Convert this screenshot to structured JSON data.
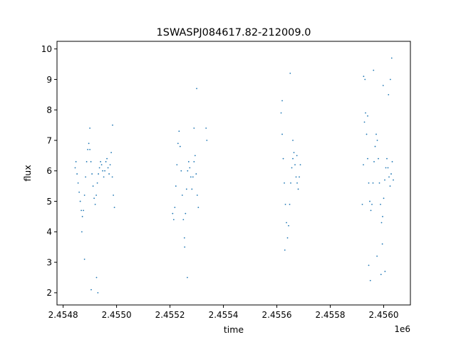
{
  "chart_data": {
    "type": "scatter",
    "title": "1SWASPJ084617.82-212009.0",
    "xlabel": "time",
    "ylabel": "flux",
    "x_offset_label": "1e6",
    "x_scale": 1000000,
    "xlim": [
      2454777,
      2456100
    ],
    "ylim": [
      1.6,
      10.25
    ],
    "x_ticks": [
      2454800,
      2455000,
      2455200,
      2455400,
      2455600,
      2455800,
      2456000
    ],
    "x_tick_labels": [
      "2.4548",
      "2.4550",
      "2.4552",
      "2.4554",
      "2.4556",
      "2.4558",
      "2.4560"
    ],
    "y_ticks": [
      2,
      3,
      4,
      5,
      6,
      7,
      8,
      9,
      10
    ],
    "y_tick_labels": [
      "2",
      "3",
      "4",
      "5",
      "6",
      "7",
      "8",
      "9",
      "10"
    ],
    "grid": false,
    "legend": "none",
    "marker_color": "#1f77b4",
    "series": [
      {
        "points": [
          [
            2454845,
            6.1
          ],
          [
            2454848,
            6.3
          ],
          [
            2454852,
            5.9
          ],
          [
            2454856,
            5.6
          ],
          [
            2454860,
            5.3
          ],
          [
            2454864,
            5.0
          ],
          [
            2454868,
            4.7
          ],
          [
            2454872,
            4.5
          ],
          [
            2454876,
            4.7
          ],
          [
            2454880,
            5.2
          ],
          [
            2454884,
            5.8
          ],
          [
            2454888,
            6.3
          ],
          [
            2454892,
            6.7
          ],
          [
            2454896,
            6.9
          ],
          [
            2454900,
            6.7
          ],
          [
            2454904,
            6.3
          ],
          [
            2454908,
            5.9
          ],
          [
            2454912,
            5.5
          ],
          [
            2454916,
            5.1
          ],
          [
            2454920,
            4.9
          ],
          [
            2454924,
            5.2
          ],
          [
            2454928,
            5.6
          ],
          [
            2454932,
            5.9
          ],
          [
            2454936,
            6.1
          ],
          [
            2454940,
            6.3
          ],
          [
            2454944,
            6.2
          ],
          [
            2454948,
            6.0
          ],
          [
            2454952,
            5.8
          ],
          [
            2454956,
            6.0
          ],
          [
            2454960,
            6.3
          ],
          [
            2454964,
            6.4
          ],
          [
            2454968,
            6.1
          ],
          [
            2454972,
            5.9
          ],
          [
            2454976,
            6.2
          ],
          [
            2454980,
            6.6
          ],
          [
            2454984,
            5.8
          ],
          [
            2454988,
            5.2
          ],
          [
            2454992,
            4.8
          ],
          [
            2454880,
            3.1
          ],
          [
            2454905,
            2.1
          ],
          [
            2454925,
            2.5
          ],
          [
            2454930,
            2.0
          ],
          [
            2454870,
            4.0
          ],
          [
            2454900,
            7.4
          ],
          [
            2454985,
            7.5
          ],
          [
            2455210,
            4.6
          ],
          [
            2455214,
            4.4
          ],
          [
            2455218,
            4.8
          ],
          [
            2455222,
            5.5
          ],
          [
            2455226,
            6.2
          ],
          [
            2455230,
            6.9
          ],
          [
            2455234,
            7.3
          ],
          [
            2455238,
            6.8
          ],
          [
            2455242,
            6.0
          ],
          [
            2455246,
            5.2
          ],
          [
            2455250,
            4.4
          ],
          [
            2455254,
            3.8
          ],
          [
            2455258,
            4.6
          ],
          [
            2455262,
            5.4
          ],
          [
            2455266,
            6.0
          ],
          [
            2455270,
            6.3
          ],
          [
            2455274,
            6.1
          ],
          [
            2455278,
            5.8
          ],
          [
            2455282,
            5.4
          ],
          [
            2455286,
            5.8
          ],
          [
            2455290,
            6.3
          ],
          [
            2455294,
            6.5
          ],
          [
            2455298,
            5.9
          ],
          [
            2455302,
            5.2
          ],
          [
            2455306,
            4.8
          ],
          [
            2455255,
            3.5
          ],
          [
            2455265,
            2.5
          ],
          [
            2455290,
            7.4
          ],
          [
            2455300,
            8.7
          ],
          [
            2455335,
            7.4
          ],
          [
            2455338,
            7.0
          ],
          [
            2455616,
            7.9
          ],
          [
            2455620,
            7.2
          ],
          [
            2455624,
            6.4
          ],
          [
            2455628,
            5.6
          ],
          [
            2455632,
            4.9
          ],
          [
            2455636,
            4.3
          ],
          [
            2455640,
            3.8
          ],
          [
            2455644,
            4.2
          ],
          [
            2455648,
            4.9
          ],
          [
            2455652,
            5.6
          ],
          [
            2455656,
            6.1
          ],
          [
            2455660,
            6.4
          ],
          [
            2455664,
            6.6
          ],
          [
            2455668,
            6.2
          ],
          [
            2455672,
            5.8
          ],
          [
            2455676,
            5.6
          ],
          [
            2455680,
            5.4
          ],
          [
            2455684,
            5.8
          ],
          [
            2455688,
            6.2
          ],
          [
            2455650,
            9.2
          ],
          [
            2455620,
            8.3
          ],
          [
            2455630,
            3.4
          ],
          [
            2455660,
            7.0
          ],
          [
            2455675,
            6.5
          ],
          [
            2455920,
            4.9
          ],
          [
            2455924,
            6.2
          ],
          [
            2455928,
            7.6
          ],
          [
            2455932,
            7.9
          ],
          [
            2455936,
            7.2
          ],
          [
            2455940,
            6.4
          ],
          [
            2455944,
            5.6
          ],
          [
            2455948,
            5.0
          ],
          [
            2455952,
            4.7
          ],
          [
            2455956,
            4.9
          ],
          [
            2455960,
            5.6
          ],
          [
            2455964,
            6.3
          ],
          [
            2455968,
            6.8
          ],
          [
            2455972,
            7.2
          ],
          [
            2455976,
            7.0
          ],
          [
            2455980,
            6.4
          ],
          [
            2455984,
            5.6
          ],
          [
            2455988,
            4.9
          ],
          [
            2455992,
            4.3
          ],
          [
            2455996,
            4.5
          ],
          [
            2456000,
            5.1
          ],
          [
            2456004,
            5.7
          ],
          [
            2456008,
            6.1
          ],
          [
            2456012,
            6.4
          ],
          [
            2456016,
            6.1
          ],
          [
            2456020,
            5.8
          ],
          [
            2456024,
            5.5
          ],
          [
            2456028,
            5.9
          ],
          [
            2456032,
            6.3
          ],
          [
            2456036,
            5.7
          ],
          [
            2455925,
            9.1
          ],
          [
            2455930,
            9.0
          ],
          [
            2455940,
            7.8
          ],
          [
            2455962,
            9.3
          ],
          [
            2455998,
            8.8
          ],
          [
            2456025,
            9.0
          ],
          [
            2456030,
            9.7
          ],
          [
            2455944,
            2.9
          ],
          [
            2455950,
            2.4
          ],
          [
            2455990,
            2.6
          ],
          [
            2456005,
            2.7
          ],
          [
            2455975,
            3.2
          ],
          [
            2455995,
            3.6
          ],
          [
            2456018,
            8.5
          ]
        ]
      }
    ]
  }
}
